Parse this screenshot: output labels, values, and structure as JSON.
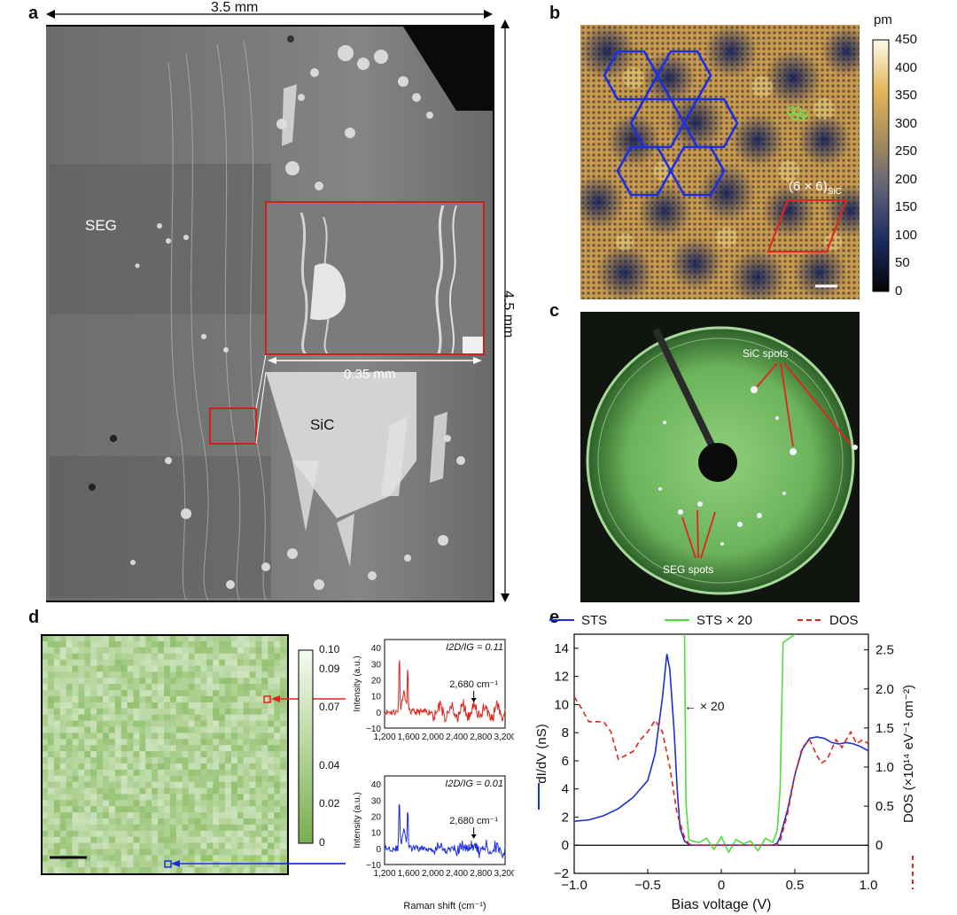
{
  "panels": {
    "a": {
      "letter": "a",
      "width_label": "3.5 mm",
      "height_label": "4.5 mm",
      "region_seg": "SEG",
      "region_sic": "SiC",
      "inset_scale": "0.35 mm"
    },
    "b": {
      "letter": "b",
      "unit": "pm",
      "colorbar_ticks": [
        "450",
        "400",
        "350",
        "300",
        "250",
        "200",
        "150",
        "100",
        "50",
        "0"
      ],
      "cell_label_main": "(6 × 6)",
      "cell_label_sub": "SiC"
    },
    "c": {
      "letter": "c",
      "sic_spots": "SiC spots",
      "seg_spots": "SEG spots"
    },
    "d": {
      "letter": "d",
      "colorbar_ticks": [
        "0.10",
        "0.09",
        "0.07",
        "0.04",
        "0.02",
        "0"
      ],
      "top_ratio": "I2D/IG = 0.11",
      "bottom_ratio": "I2D/IG = 0.01",
      "peak_label": "2,680 cm⁻¹",
      "y_label": "Intensity (a.u.)",
      "x_label": "Raman shift (cm⁻¹)",
      "top_yticks": [
        "40",
        "30",
        "20",
        "10",
        "0",
        "−10"
      ],
      "bottom_yticks": [
        "40",
        "30",
        "20",
        "10",
        "0",
        "−10"
      ],
      "xticks": [
        "1,200",
        "1,600",
        "2,000",
        "2,400",
        "2,800",
        "3,200"
      ]
    },
    "e": {
      "letter": "e",
      "legend": [
        "STS",
        "STS × 20",
        "DOS"
      ],
      "annotation": "← × 20",
      "xlabel": "Bias voltage (V)",
      "ylabel_left": "dI/dV (nS)",
      "ylabel_right": "DOS (×10¹⁴ eV⁻¹ cm⁻²)",
      "xticks": [
        "−1.0",
        "−0.5",
        "0",
        "0.5",
        "1.0"
      ],
      "yticks_left": [
        "14",
        "12",
        "10",
        "8",
        "6",
        "4",
        "2",
        "0",
        "−2"
      ],
      "yticks_right": [
        "2.5",
        "2.0",
        "1.5",
        "1.0",
        "0.5",
        "0"
      ]
    }
  },
  "chart_data": {
    "type": "line",
    "xlabel": "Bias voltage (V)",
    "ylabel": "dI/dV (nS)",
    "ylabel_right": "DOS (×10¹⁴ eV⁻¹ cm⁻²)",
    "xlim": [
      -1.0,
      1.0
    ],
    "ylim": [
      -2,
      15
    ],
    "ylim_right": [
      -0.36,
      2.7
    ],
    "series": [
      {
        "name": "STS",
        "color": "#1f2fd6",
        "axis": "left",
        "x": [
          -1.0,
          -0.9,
          -0.8,
          -0.7,
          -0.6,
          -0.5,
          -0.45,
          -0.4,
          -0.37,
          -0.35,
          -0.32,
          -0.3,
          -0.28,
          -0.25,
          -0.22,
          -0.2,
          0,
          0.2,
          0.35,
          0.38,
          0.4,
          0.45,
          0.5,
          0.55,
          0.6,
          0.65,
          0.7,
          0.75,
          0.8,
          0.85,
          0.9,
          0.95,
          1.0
        ],
        "y": [
          1.7,
          1.8,
          2.1,
          2.6,
          3.4,
          4.6,
          6.5,
          10.5,
          13.6,
          12.5,
          8.0,
          4.0,
          1.2,
          0.3,
          0.05,
          0.0,
          0.0,
          0.0,
          0.0,
          0.15,
          0.6,
          2.5,
          5.0,
          6.8,
          7.6,
          7.7,
          7.6,
          7.3,
          7.2,
          7.3,
          7.2,
          7.0,
          6.7
        ]
      },
      {
        "name": "STS × 20",
        "color": "#4ede3a",
        "axis": "left",
        "x": [
          -0.25,
          -0.24,
          -0.22,
          -0.2,
          -0.15,
          -0.1,
          -0.05,
          0,
          0.05,
          0.1,
          0.15,
          0.2,
          0.25,
          0.3,
          0.35,
          0.38,
          0.4,
          0.42,
          0.5
        ],
        "y": [
          15,
          3.0,
          0.4,
          0.3,
          0.2,
          0.5,
          -0.3,
          0.6,
          -0.5,
          0.4,
          0.1,
          0.3,
          -0.4,
          0.5,
          0.2,
          1.0,
          4.0,
          14.4,
          15
        ]
      },
      {
        "name": "DOS",
        "color": "#e0241c",
        "axis": "right",
        "x": [
          -1.0,
          -0.95,
          -0.9,
          -0.8,
          -0.75,
          -0.7,
          -0.6,
          -0.55,
          -0.5,
          -0.45,
          -0.4,
          -0.35,
          -0.3,
          -0.25,
          -0.22,
          -0.2,
          0,
          0.38,
          0.4,
          0.45,
          0.5,
          0.55,
          0.6,
          0.65,
          0.68,
          0.72,
          0.78,
          0.82,
          0.88,
          0.92,
          0.96,
          1.0
        ],
        "y": [
          1.9,
          1.75,
          1.58,
          1.58,
          1.45,
          1.1,
          1.2,
          1.35,
          1.45,
          1.6,
          1.45,
          1.0,
          0.4,
          0.1,
          0.02,
          0.0,
          0.0,
          0.0,
          0.05,
          0.4,
          0.9,
          1.25,
          1.35,
          1.15,
          1.05,
          1.1,
          1.35,
          1.25,
          1.45,
          1.3,
          1.35,
          1.3
        ]
      }
    ],
    "legend": "top"
  }
}
